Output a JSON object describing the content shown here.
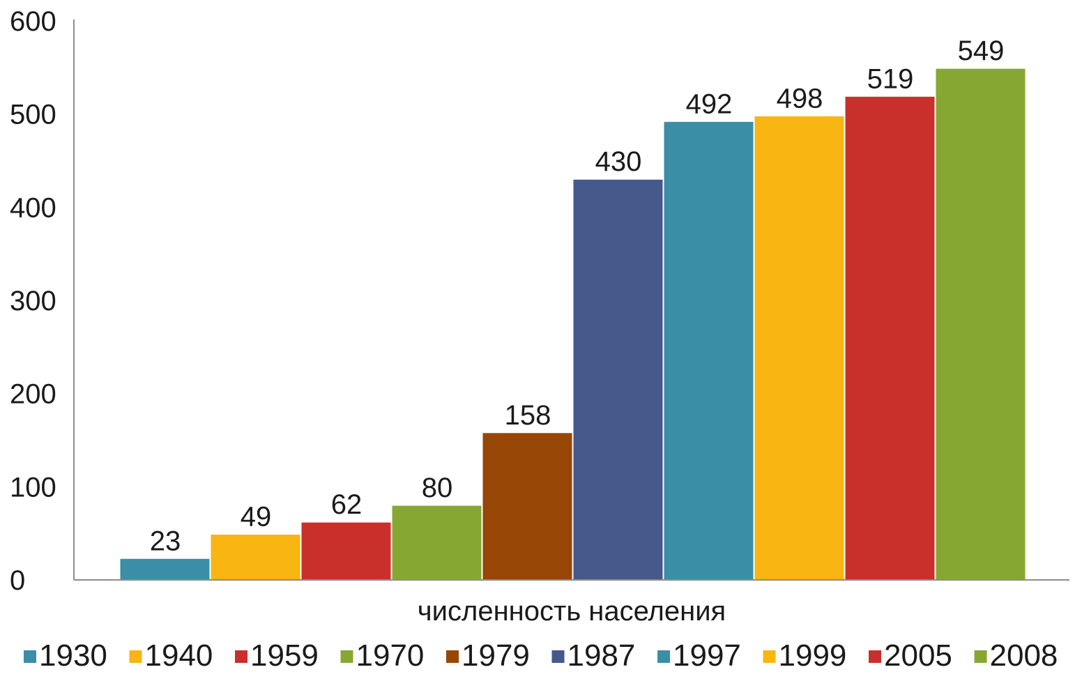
{
  "chart_data": {
    "type": "bar",
    "title": "",
    "xlabel": "численность населения",
    "ylabel": "",
    "ylim": [
      0,
      600
    ],
    "yticks": [
      0,
      100,
      200,
      300,
      400,
      500,
      600
    ],
    "grid": false,
    "legend_position": "bottom",
    "categories": [
      "численность населения"
    ],
    "series": [
      {
        "name": "1930",
        "value": 23,
        "label": "23",
        "color": "#3A8FA6"
      },
      {
        "name": "1940",
        "value": 49,
        "label": "49",
        "color": "#F9B511"
      },
      {
        "name": "1959",
        "value": 62,
        "label": "62",
        "color": "#C9302C"
      },
      {
        "name": "1970",
        "value": 80,
        "label": "80",
        "color": "#86A833"
      },
      {
        "name": "1979",
        "value": 158,
        "label": "158",
        "color": "#984605"
      },
      {
        "name": "1987",
        "value": 430,
        "label": "430",
        "color": "#46598B"
      },
      {
        "name": "1997",
        "value": 492,
        "label": "492",
        "color": "#3A8FA6"
      },
      {
        "name": "1999",
        "value": 498,
        "label": "498",
        "color": "#F9B511"
      },
      {
        "name": "2005",
        "value": 519,
        "label": "519",
        "color": "#C9302C"
      },
      {
        "name": "2008",
        "value": 549,
        "label": "549",
        "color": "#86A833"
      }
    ]
  }
}
